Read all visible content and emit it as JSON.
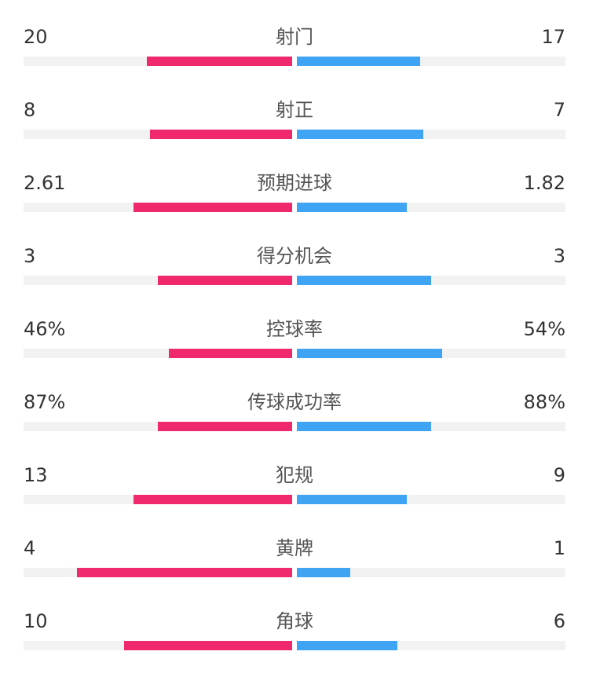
{
  "colors": {
    "home": "#f0296e",
    "away": "#3ea4f3",
    "track": "#f2f2f3",
    "text": "#333333"
  },
  "stats": [
    {
      "label": "射门",
      "home": "20",
      "away": "17",
      "home_fill": 0.54,
      "away_fill": 0.46
    },
    {
      "label": "射正",
      "home": "8",
      "away": "7",
      "home_fill": 0.53,
      "away_fill": 0.47
    },
    {
      "label": "预期进球",
      "home": "2.61",
      "away": "1.82",
      "home_fill": 0.59,
      "away_fill": 0.41
    },
    {
      "label": "得分机会",
      "home": "3",
      "away": "3",
      "home_fill": 0.5,
      "away_fill": 0.5
    },
    {
      "label": "控球率",
      "home": "46%",
      "away": "54%",
      "home_fill": 0.46,
      "away_fill": 0.54
    },
    {
      "label": "传球成功率",
      "home": "87%",
      "away": "88%",
      "home_fill": 0.5,
      "away_fill": 0.5
    },
    {
      "label": "犯规",
      "home": "13",
      "away": "9",
      "home_fill": 0.59,
      "away_fill": 0.41
    },
    {
      "label": "黄牌",
      "home": "4",
      "away": "1",
      "home_fill": 0.8,
      "away_fill": 0.2
    },
    {
      "label": "角球",
      "home": "10",
      "away": "6",
      "home_fill": 0.625,
      "away_fill": 0.375
    }
  ]
}
